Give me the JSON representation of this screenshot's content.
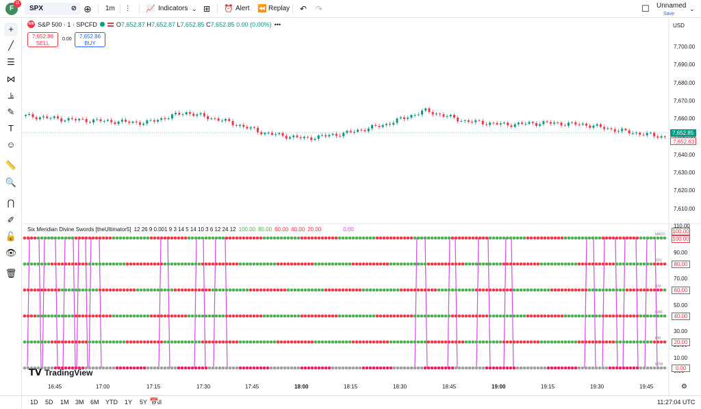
{
  "topbar": {
    "avatar_letter": "F",
    "avatar_badge": "11",
    "symbol": "SPX",
    "interval": "1m",
    "indicators_label": "Indicators",
    "alert_label": "Alert",
    "replay_label": "Replay",
    "layout_name": "Unnamed",
    "layout_save": "Save"
  },
  "legend": {
    "symbol_icon": "500",
    "title": "S&P 500 · 1 · SPCFD",
    "o_label": "O",
    "o_value": "7,652.87",
    "h_label": "H",
    "h_value": "7,652.87",
    "l_label": "L",
    "l_value": "7,652.85",
    "c_label": "C",
    "c_value": "7,652.85",
    "change": "0.00 (0.00%)",
    "more": "•••"
  },
  "trade": {
    "sell_price": "7,652.86",
    "sell_label": "SELL",
    "spread": "0.00",
    "buy_price": "7,652.86",
    "buy_label": "BUY"
  },
  "currency": "USD",
  "price_axis": [
    "7,700.00",
    "7,690.00",
    "7,680.00",
    "7,670.00",
    "7,660.00",
    "7,650.00",
    "7,640.00",
    "7,630.00",
    "7,620.00",
    "7,610.00"
  ],
  "price_tags": {
    "last": "7,652.85",
    "bid": "7,652.63"
  },
  "indicator": {
    "name": "Six Meridian Divine Swords [theUltimator5]",
    "params": "12 26 9 0.001 9 3 14 5 14 10 3 6 12 24 12",
    "v1": "100.00",
    "v2": "80.00",
    "v3": "60.00",
    "v4": "40.00",
    "v5": "20.00",
    "v6": "0.00",
    "axis": [
      "110.00",
      "100.00",
      "90.00",
      "80.00",
      "70.00",
      "60.00",
      "50.00",
      "40.00",
      "30.00",
      "20.00",
      "10.00",
      "0.00"
    ],
    "tags": [
      "100.00",
      "100.00",
      "80.00",
      "60.00",
      "40.00",
      "20.00",
      "0.00"
    ],
    "row_labels": [
      "MACD",
      "KDJ",
      "RSI",
      "LWR",
      "BBI",
      "MTM"
    ]
  },
  "time_axis": [
    "16:45",
    "17:00",
    "17:15",
    "17:30",
    "17:45",
    "18:00",
    "18:15",
    "18:30",
    "18:45",
    "19:00",
    "19:15",
    "19:30",
    "19:45"
  ],
  "brand": "TradingView",
  "bottom": {
    "ranges": [
      "1D",
      "5D",
      "1M",
      "3M",
      "6M",
      "YTD",
      "1Y",
      "5Y",
      "All"
    ],
    "clock": "11:27:04 UTC"
  },
  "chart_data": {
    "type": "line",
    "title": "S&P 500 · 1 · SPCFD",
    "x": [
      "16:36",
      "16:45",
      "17:00",
      "17:05",
      "17:10",
      "17:15",
      "17:30",
      "17:45",
      "18:00",
      "18:15",
      "18:30",
      "18:45",
      "19:00",
      "19:15",
      "19:30",
      "19:45",
      "19:52"
    ],
    "series": [
      {
        "values": [
          7665,
          7663,
          7662,
          7661,
          7667,
          7662,
          7655,
          7652,
          7655,
          7660,
          7668,
          7662,
          7660,
          7661,
          7660,
          7656,
          7652.85
        ]
      }
    ],
    "ylim": [
      7605,
      7712
    ]
  },
  "colors": {
    "up": "#089981",
    "down": "#f23645",
    "magenta": "#d946ef",
    "pink": "#e91e63",
    "green_dot": "#4caf50"
  }
}
